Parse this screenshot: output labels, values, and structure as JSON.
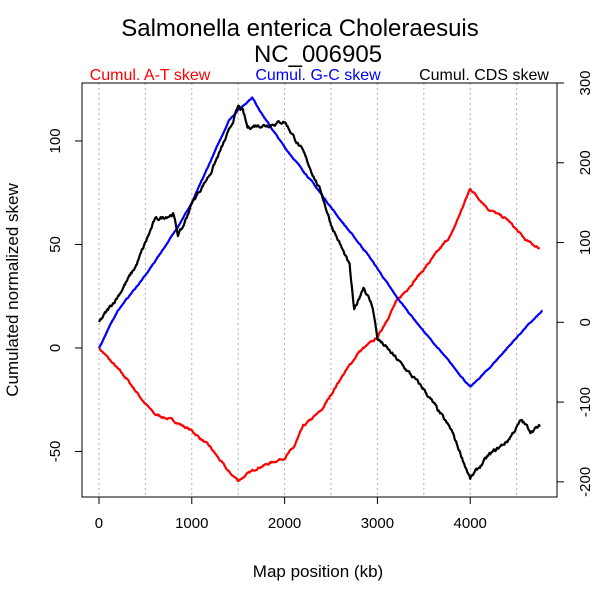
{
  "chart_data": {
    "type": "line",
    "title": "Salmonella enterica Choleraesuis",
    "subtitle": "NC_006905",
    "xlabel": "Map position (kb)",
    "ylabel": "Cumulated normalized skew",
    "xlim": [
      -183,
      4935
    ],
    "ylim_left": [
      -72,
      128
    ],
    "ylim_right": [
      -219,
      300
    ],
    "x_ticks": [
      0,
      1000,
      2000,
      3000,
      4000
    ],
    "y_ticks_left": [
      -50,
      0,
      50,
      100
    ],
    "y_ticks_right": [
      -200,
      -100,
      0,
      100,
      200,
      300
    ],
    "grid": "vertical dotted every 500 kb",
    "legend_placement": "top",
    "series": [
      {
        "name": "Cumul. A-T skew",
        "color": "#ff0000",
        "axis": "left",
        "x": [
          0,
          100,
          200,
          300,
          500,
          600,
          800,
          1000,
          1200,
          1400,
          1500,
          1700,
          2000,
          2100,
          2200,
          2400,
          2600,
          2800,
          3000,
          3200,
          3500,
          3800,
          4000,
          4200,
          4400,
          4600,
          4750
        ],
        "y": [
          0,
          -5,
          -10,
          -15,
          -27,
          -32,
          -35,
          -40,
          -48,
          -60,
          -64,
          -58,
          -53,
          -48,
          -38,
          -30,
          -15,
          -2,
          5,
          22,
          38,
          55,
          77,
          67,
          62,
          52,
          48
        ]
      },
      {
        "name": "Cumul. G-C skew",
        "color": "#0000ff",
        "axis": "left",
        "x": [
          0,
          200,
          500,
          800,
          1000,
          1200,
          1400,
          1500,
          1650,
          1800,
          2000,
          2300,
          2600,
          2900,
          3200,
          3500,
          3800,
          4000,
          4200,
          4400,
          4600,
          4780
        ],
        "y": [
          0,
          18,
          35,
          55,
          70,
          90,
          110,
          115,
          121,
          110,
          97,
          80,
          62,
          45,
          25,
          8,
          -8,
          -19,
          -10,
          0,
          10,
          18
        ]
      },
      {
        "name": "Cumul. CDS skew",
        "color": "#000000",
        "axis": "right",
        "x": [
          0,
          200,
          400,
          600,
          800,
          850,
          900,
          1000,
          1200,
          1400,
          1500,
          1550,
          1600,
          1700,
          1800,
          2000,
          2200,
          2400,
          2500,
          2700,
          2750,
          2850,
          2950,
          3000,
          3200,
          3500,
          3800,
          4000,
          4200,
          4400,
          4550,
          4650,
          4750
        ],
        "y": [
          0,
          32,
          71,
          128,
          136,
          110,
          118,
          149,
          187,
          239,
          270,
          265,
          244,
          247,
          247,
          252,
          213,
          161,
          123,
          71,
          14,
          45,
          19,
          -20,
          -45,
          -84,
          -136,
          -196,
          -167,
          -149,
          -123,
          -136,
          -131
        ]
      }
    ]
  }
}
